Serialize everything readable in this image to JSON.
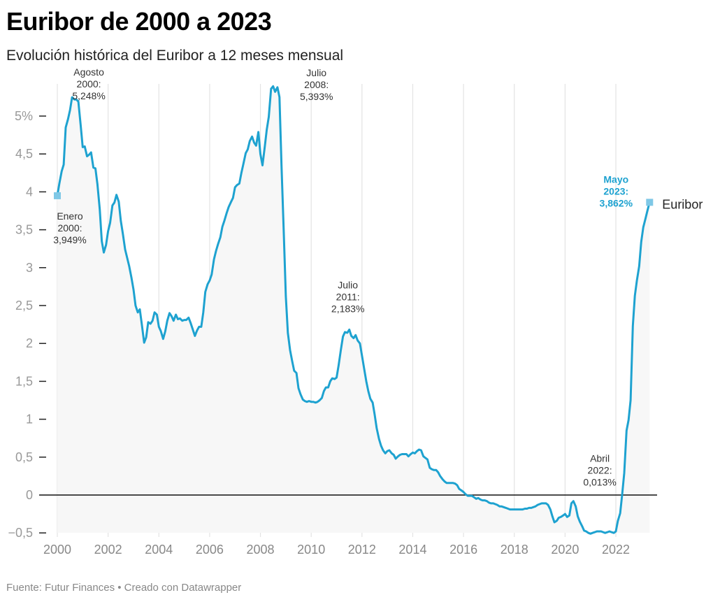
{
  "header": {
    "title": "Euribor de 2000 a 2023",
    "subtitle": "Evolución histórica del Euribor a 12 meses mensual"
  },
  "footer": {
    "text": "Fuente: Futur Finances • Creado con Datawrapper"
  },
  "colors": {
    "line": "#1ea2d0",
    "marker": "#7fc8e6",
    "area": "#f7f7f7",
    "grid": "#e3e3e3",
    "zero_line": "#111111"
  },
  "chart_data": {
    "type": "area",
    "title": "Euribor de 2000 a 2023",
    "subtitle": "Evolución histórica del Euribor a 12 meses mensual",
    "xlabel": "",
    "ylabel": "",
    "xlim": [
      2000,
      2023.33
    ],
    "ylim": [
      -0.5,
      5.4
    ],
    "grid": "vertical",
    "legend": "inline-right",
    "x_ticks": [
      2000,
      2002,
      2004,
      2006,
      2008,
      2010,
      2012,
      2014,
      2016,
      2018,
      2020,
      2022
    ],
    "x_tick_labels": [
      "2000",
      "2002",
      "2004",
      "2006",
      "2008",
      "2010",
      "2012",
      "2014",
      "2016",
      "2018",
      "2020",
      "2022"
    ],
    "y_ticks": [
      -0.5,
      0,
      0.5,
      1,
      1.5,
      2,
      2.5,
      3,
      3.5,
      4,
      4.5,
      5
    ],
    "y_tick_labels": [
      "−0,5",
      "0",
      "0,5",
      "1",
      "1,5",
      "2",
      "2,5",
      "3",
      "3,5",
      "4",
      "4,5",
      "5%"
    ],
    "series": [
      {
        "name": "Euribor",
        "x": [
          2000.0,
          2000.08,
          2000.17,
          2000.25,
          2000.33,
          2000.42,
          2000.5,
          2000.58,
          2000.67,
          2000.75,
          2000.83,
          2000.92,
          2001.0,
          2001.08,
          2001.17,
          2001.25,
          2001.33,
          2001.42,
          2001.5,
          2001.58,
          2001.67,
          2001.75,
          2001.83,
          2001.92,
          2002.0,
          2002.08,
          2002.17,
          2002.25,
          2002.33,
          2002.42,
          2002.5,
          2002.58,
          2002.67,
          2002.75,
          2002.83,
          2002.92,
          2003.0,
          2003.08,
          2003.17,
          2003.25,
          2003.33,
          2003.42,
          2003.5,
          2003.58,
          2003.67,
          2003.75,
          2003.83,
          2003.92,
          2004.0,
          2004.08,
          2004.17,
          2004.25,
          2004.33,
          2004.42,
          2004.5,
          2004.58,
          2004.67,
          2004.75,
          2004.83,
          2004.92,
          2005.0,
          2005.08,
          2005.17,
          2005.25,
          2005.33,
          2005.42,
          2005.5,
          2005.58,
          2005.67,
          2005.75,
          2005.83,
          2005.92,
          2006.0,
          2006.08,
          2006.17,
          2006.25,
          2006.33,
          2006.42,
          2006.5,
          2006.58,
          2006.67,
          2006.75,
          2006.83,
          2006.92,
          2007.0,
          2007.08,
          2007.17,
          2007.25,
          2007.33,
          2007.42,
          2007.5,
          2007.58,
          2007.67,
          2007.75,
          2007.83,
          2007.92,
          2008.0,
          2008.08,
          2008.17,
          2008.25,
          2008.33,
          2008.42,
          2008.5,
          2008.58,
          2008.67,
          2008.75,
          2008.83,
          2008.92,
          2009.0,
          2009.08,
          2009.17,
          2009.25,
          2009.33,
          2009.42,
          2009.5,
          2009.58,
          2009.67,
          2009.75,
          2009.83,
          2009.92,
          2010.0,
          2010.08,
          2010.17,
          2010.25,
          2010.33,
          2010.42,
          2010.5,
          2010.58,
          2010.67,
          2010.75,
          2010.83,
          2010.92,
          2011.0,
          2011.08,
          2011.17,
          2011.25,
          2011.33,
          2011.42,
          2011.5,
          2011.58,
          2011.67,
          2011.75,
          2011.83,
          2011.92,
          2012.0,
          2012.08,
          2012.17,
          2012.25,
          2012.33,
          2012.42,
          2012.5,
          2012.58,
          2012.67,
          2012.75,
          2012.83,
          2012.92,
          2013.0,
          2013.08,
          2013.17,
          2013.25,
          2013.33,
          2013.42,
          2013.5,
          2013.58,
          2013.67,
          2013.75,
          2013.83,
          2013.92,
          2014.0,
          2014.08,
          2014.17,
          2014.25,
          2014.33,
          2014.42,
          2014.5,
          2014.58,
          2014.67,
          2014.75,
          2014.83,
          2014.92,
          2015.0,
          2015.08,
          2015.17,
          2015.25,
          2015.33,
          2015.42,
          2015.5,
          2015.58,
          2015.67,
          2015.75,
          2015.83,
          2015.92,
          2016.0,
          2016.08,
          2016.17,
          2016.25,
          2016.33,
          2016.42,
          2016.5,
          2016.58,
          2016.67,
          2016.75,
          2016.83,
          2016.92,
          2017.0,
          2017.08,
          2017.17,
          2017.25,
          2017.33,
          2017.42,
          2017.5,
          2017.58,
          2017.67,
          2017.75,
          2017.83,
          2017.92,
          2018.0,
          2018.08,
          2018.17,
          2018.25,
          2018.33,
          2018.42,
          2018.5,
          2018.58,
          2018.67,
          2018.75,
          2018.83,
          2018.92,
          2019.0,
          2019.08,
          2019.17,
          2019.25,
          2019.33,
          2019.42,
          2019.5,
          2019.58,
          2019.67,
          2019.75,
          2019.83,
          2019.92,
          2020.0,
          2020.08,
          2020.17,
          2020.25,
          2020.33,
          2020.42,
          2020.5,
          2020.58,
          2020.67,
          2020.75,
          2020.83,
          2020.92,
          2021.0,
          2021.08,
          2021.17,
          2021.25,
          2021.33,
          2021.42,
          2021.5,
          2021.58,
          2021.67,
          2021.75,
          2021.83,
          2021.92,
          2022.0,
          2022.08,
          2022.17,
          2022.25,
          2022.33,
          2022.42,
          2022.5,
          2022.58,
          2022.67,
          2022.75,
          2022.83,
          2022.92,
          2023.0,
          2023.08,
          2023.17,
          2023.25,
          2023.33
        ],
        "values": [
          3.949,
          4.11,
          4.27,
          4.36,
          4.85,
          4.96,
          5.08,
          5.248,
          5.22,
          5.22,
          5.19,
          4.88,
          4.59,
          4.6,
          4.47,
          4.49,
          4.52,
          4.32,
          4.31,
          4.1,
          3.77,
          3.35,
          3.2,
          3.3,
          3.48,
          3.59,
          3.82,
          3.86,
          3.96,
          3.87,
          3.62,
          3.45,
          3.24,
          3.13,
          3.02,
          2.87,
          2.71,
          2.5,
          2.41,
          2.45,
          2.25,
          2.01,
          2.08,
          2.28,
          2.26,
          2.3,
          2.41,
          2.38,
          2.22,
          2.16,
          2.06,
          2.16,
          2.3,
          2.4,
          2.36,
          2.3,
          2.38,
          2.32,
          2.33,
          2.3,
          2.31,
          2.31,
          2.34,
          2.27,
          2.19,
          2.1,
          2.17,
          2.22,
          2.22,
          2.41,
          2.68,
          2.78,
          2.83,
          2.91,
          3.11,
          3.22,
          3.31,
          3.4,
          3.54,
          3.62,
          3.72,
          3.8,
          3.86,
          3.92,
          4.06,
          4.09,
          4.11,
          4.25,
          4.37,
          4.51,
          4.56,
          4.67,
          4.73,
          4.65,
          4.61,
          4.79,
          4.5,
          4.35,
          4.59,
          4.82,
          4.99,
          5.36,
          5.393,
          5.32,
          5.38,
          5.25,
          4.35,
          3.45,
          2.62,
          2.14,
          1.91,
          1.77,
          1.64,
          1.61,
          1.41,
          1.33,
          1.26,
          1.24,
          1.23,
          1.24,
          1.23,
          1.23,
          1.22,
          1.23,
          1.25,
          1.28,
          1.37,
          1.42,
          1.42,
          1.5,
          1.54,
          1.53,
          1.55,
          1.71,
          1.92,
          2.09,
          2.15,
          2.14,
          2.183,
          2.1,
          2.07,
          2.11,
          2.04,
          2.0,
          1.84,
          1.68,
          1.5,
          1.37,
          1.27,
          1.22,
          1.06,
          0.88,
          0.74,
          0.65,
          0.59,
          0.55,
          0.58,
          0.59,
          0.55,
          0.53,
          0.48,
          0.51,
          0.53,
          0.54,
          0.54,
          0.54,
          0.51,
          0.54,
          0.56,
          0.55,
          0.58,
          0.6,
          0.59,
          0.51,
          0.49,
          0.47,
          0.36,
          0.34,
          0.33,
          0.33,
          0.3,
          0.25,
          0.21,
          0.18,
          0.16,
          0.16,
          0.16,
          0.16,
          0.15,
          0.13,
          0.08,
          0.06,
          0.04,
          0.01,
          -0.01,
          -0.01,
          -0.01,
          -0.03,
          -0.05,
          -0.04,
          -0.06,
          -0.07,
          -0.07,
          -0.08,
          -0.1,
          -0.11,
          -0.11,
          -0.12,
          -0.13,
          -0.15,
          -0.15,
          -0.16,
          -0.17,
          -0.18,
          -0.19,
          -0.19,
          -0.19,
          -0.19,
          -0.19,
          -0.19,
          -0.19,
          -0.18,
          -0.18,
          -0.17,
          -0.17,
          -0.16,
          -0.15,
          -0.13,
          -0.12,
          -0.11,
          -0.11,
          -0.11,
          -0.13,
          -0.19,
          -0.28,
          -0.36,
          -0.34,
          -0.3,
          -0.29,
          -0.27,
          -0.25,
          -0.29,
          -0.27,
          -0.11,
          -0.08,
          -0.15,
          -0.28,
          -0.35,
          -0.41,
          -0.47,
          -0.48,
          -0.5,
          -0.51,
          -0.5,
          -0.49,
          -0.48,
          -0.48,
          -0.48,
          -0.49,
          -0.5,
          -0.49,
          -0.48,
          -0.49,
          -0.5,
          -0.48,
          -0.34,
          -0.24,
          0.013,
          0.29,
          0.85,
          0.99,
          1.25,
          2.23,
          2.63,
          2.83,
          3.02,
          3.34,
          3.53,
          3.65,
          3.76,
          3.862
        ]
      }
    ],
    "annotations": [
      {
        "lines": [
          "Agosto",
          "2000:",
          "5,248%"
        ],
        "x": 2000.58,
        "y": 5.248,
        "position": "above",
        "highlight": false
      },
      {
        "lines": [
          "Enero",
          "2000:",
          "3,949%"
        ],
        "x": 2000.0,
        "y": 3.949,
        "position": "below",
        "highlight": false
      },
      {
        "lines": [
          "Julio",
          "2008:",
          "5,393%"
        ],
        "x": 2008.5,
        "y": 5.393,
        "position": "above-right",
        "highlight": false
      },
      {
        "lines": [
          "Julio",
          "2011:",
          "2,183%"
        ],
        "x": 2011.5,
        "y": 2.183,
        "position": "above",
        "highlight": false
      },
      {
        "lines": [
          "Abril",
          "2022:",
          "0,013%"
        ],
        "x": 2022.25,
        "y": 0.013,
        "position": "above-left",
        "highlight": false
      },
      {
        "lines": [
          "Mayo",
          "2023:",
          "3,862%"
        ],
        "x": 2023.33,
        "y": 3.862,
        "position": "left",
        "highlight": true
      }
    ],
    "series_label": "Euribor"
  }
}
